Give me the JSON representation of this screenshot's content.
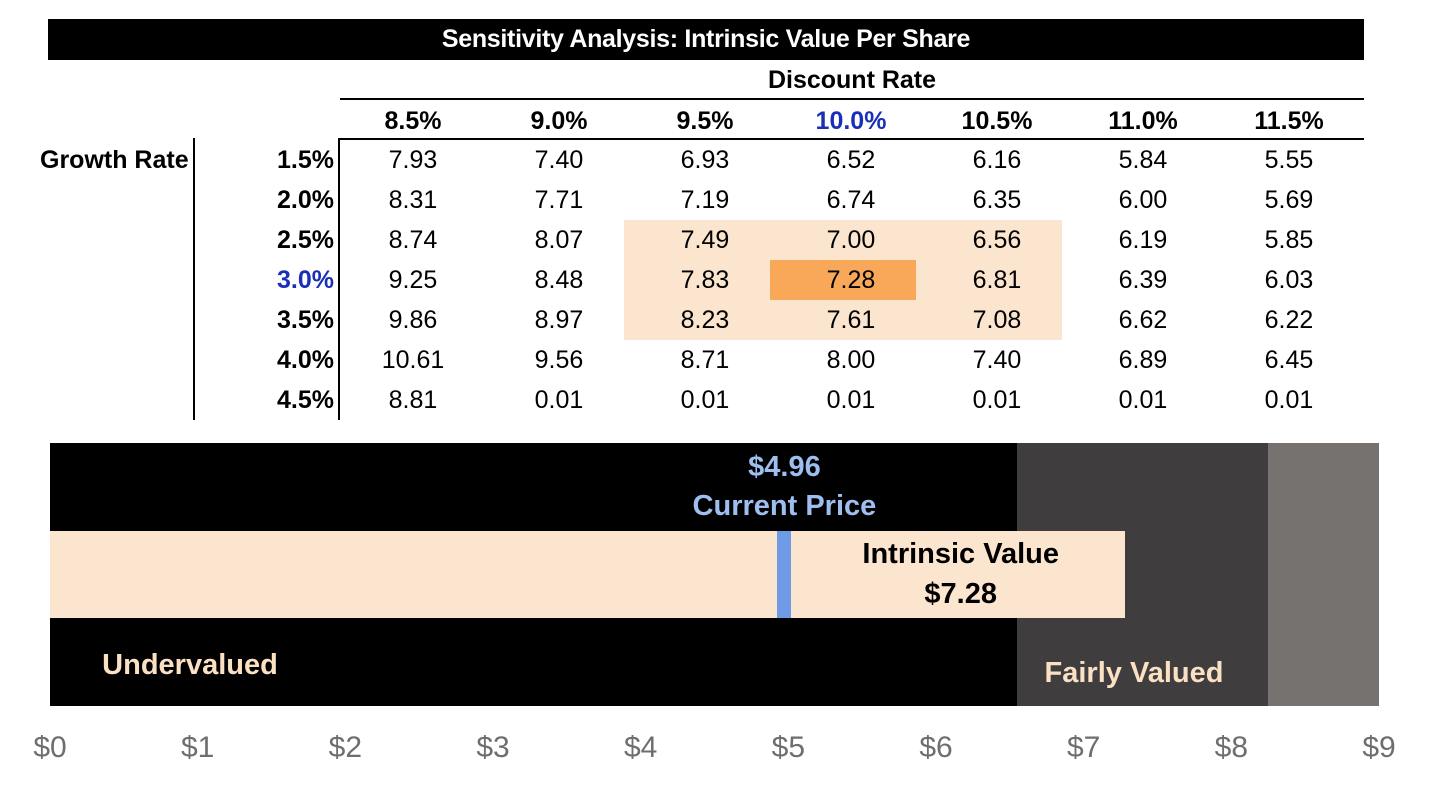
{
  "title": "Sensitivity Analysis: Intrinsic Value Per Share",
  "chart_data": [
    {
      "type": "table",
      "title": "Sensitivity Analysis: Intrinsic Value Per Share",
      "column_header_label": "Discount Rate",
      "row_header_label": "Growth Rate",
      "columns": [
        "8.5%",
        "9.0%",
        "9.5%",
        "10.0%",
        "10.5%",
        "11.0%",
        "11.5%"
      ],
      "rows": [
        "1.5%",
        "2.0%",
        "2.5%",
        "3.0%",
        "3.5%",
        "4.0%",
        "4.5%"
      ],
      "base_column": "10.0%",
      "base_row": "3.0%",
      "values": [
        [
          "7.93",
          "7.40",
          "6.93",
          "6.52",
          "6.16",
          "5.84",
          "5.55"
        ],
        [
          "8.31",
          "7.71",
          "7.19",
          "6.74",
          "6.35",
          "6.00",
          "5.69"
        ],
        [
          "8.74",
          "8.07",
          "7.49",
          "7.00",
          "6.56",
          "6.19",
          "5.85"
        ],
        [
          "9.25",
          "8.48",
          "7.83",
          "7.28",
          "6.81",
          "6.39",
          "6.03"
        ],
        [
          "9.86",
          "8.97",
          "8.23",
          "7.61",
          "7.08",
          "6.62",
          "6.22"
        ],
        [
          "10.61",
          "9.56",
          "8.71",
          "8.00",
          "7.40",
          "6.89",
          "6.45"
        ],
        [
          "8.81",
          "0.01",
          "0.01",
          "0.01",
          "0.01",
          "0.01",
          "0.01"
        ]
      ],
      "highlight_range": {
        "rows": [
          "2.5%",
          "3.0%",
          "3.5%"
        ],
        "columns": [
          "9.5%",
          "10.0%",
          "10.5%"
        ]
      },
      "colors": {
        "highlight_light": "#fbe5cf",
        "highlight_base": "#f9a85a",
        "base_label": "#1a2fb8"
      }
    },
    {
      "type": "bar",
      "xlim": [
        0,
        9
      ],
      "x_ticks": [
        "$0",
        "$1",
        "$2",
        "$3",
        "$4",
        "$5",
        "$6",
        "$7",
        "$8",
        "$9"
      ],
      "zones": [
        {
          "label": "Undervalued",
          "start": 0,
          "end": 6.55,
          "color": "#000000"
        },
        {
          "label": "Fairly Valued",
          "start": 6.55,
          "end": 8.25,
          "color": "#3f3d3d"
        },
        {
          "label": "",
          "start": 8.25,
          "end": 9.0,
          "color": "#767270"
        }
      ],
      "intrinsic_value": {
        "label": "Intrinsic Value",
        "value": 7.28,
        "value_text": "$7.28",
        "color": "#fbe5cf"
      },
      "current_price": {
        "label": "Current Price",
        "value": 4.96,
        "value_text": "$4.96",
        "color": "#6f9ae8"
      }
    }
  ]
}
